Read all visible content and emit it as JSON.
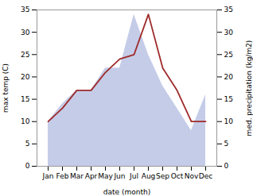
{
  "chart_data": {
    "type": "line",
    "categories": [
      "Jan",
      "Feb",
      "Mar",
      "Apr",
      "May",
      "Jun",
      "Jul",
      "Aug",
      "Sep",
      "Oct",
      "Nov",
      "Dec"
    ],
    "series": [
      {
        "type": "area",
        "axis": "y2",
        "color": "#c5cce8",
        "values": [
          10,
          14,
          17,
          17,
          22,
          22,
          34,
          25,
          18,
          13,
          8,
          16
        ]
      },
      {
        "type": "line",
        "color": "#9e2a2a",
        "values": [
          10,
          13,
          17,
          17,
          21,
          24,
          25,
          34,
          22,
          17,
          10,
          10
        ]
      }
    ],
    "xlabel": "date (month)",
    "ylabel": "max temp (C)",
    "y2label": "med. precipitation (kg/m2)",
    "ylim": [
      0,
      35
    ],
    "yticks": [
      0,
      5,
      10,
      15,
      20,
      25,
      30,
      35
    ],
    "y2lim": [
      0,
      35
    ],
    "y2ticks": [
      0,
      5,
      10,
      15,
      20,
      25,
      30,
      35
    ],
    "grid": false
  }
}
